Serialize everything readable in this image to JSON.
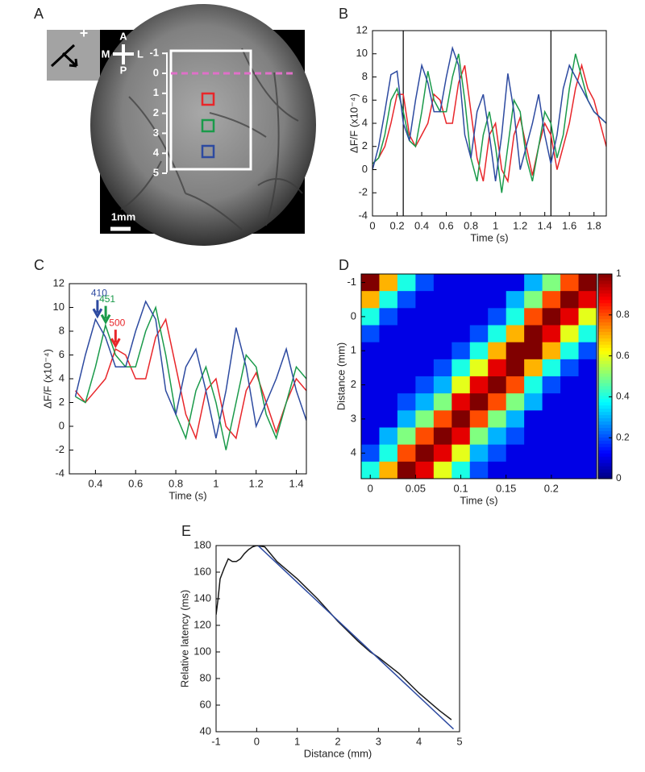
{
  "panel_a": {
    "label": "A",
    "compass": {
      "anterior": "A",
      "medial": "M",
      "lateral": "L",
      "posterior": "P"
    },
    "scale_ticks": [
      -1,
      0,
      1,
      2,
      3,
      4,
      5
    ],
    "scale_bar": "1mm",
    "inset_marker": "+"
  },
  "chart_data": [
    {
      "type": "line",
      "label": "B",
      "xlabel": "Time (s)",
      "ylabel": "ΔF/F (x10⁻⁴)",
      "x": [
        0,
        0.05,
        0.1,
        0.15,
        0.2,
        0.25,
        0.3,
        0.35,
        0.4,
        0.45,
        0.5,
        0.55,
        0.6,
        0.65,
        0.7,
        0.75,
        0.8,
        0.85,
        0.9,
        0.95,
        1.0,
        1.05,
        1.1,
        1.15,
        1.2,
        1.25,
        1.3,
        1.35,
        1.4,
        1.45,
        1.5,
        1.55,
        1.6,
        1.65,
        1.7,
        1.75,
        1.8,
        1.85,
        1.9
      ],
      "series": [
        {
          "color": "#e8262a",
          "values": [
            0.5,
            1,
            2,
            4,
            6.5,
            6.5,
            3,
            2,
            3,
            4,
            6.5,
            6,
            4,
            4,
            7.5,
            9,
            5,
            1,
            -1,
            3,
            4,
            0,
            -1,
            3,
            4.5,
            2,
            -0.5,
            2,
            4,
            3,
            0,
            2,
            4,
            7,
            9,
            7,
            6,
            4,
            2
          ]
        },
        {
          "color": "#1a9a4a",
          "values": [
            0.5,
            1,
            3,
            6,
            7,
            5,
            2.5,
            2,
            5,
            8.5,
            6,
            5,
            5,
            8,
            10,
            6,
            1,
            -1,
            3,
            5,
            2,
            -2,
            2,
            6,
            5,
            1,
            -1,
            2,
            5,
            4,
            1,
            3,
            7,
            10,
            8,
            6,
            5,
            4.5,
            4
          ]
        },
        {
          "color": "#2d4aa0",
          "values": [
            0,
            2,
            5,
            8.2,
            8.5,
            4,
            2.5,
            6,
            9,
            7.5,
            5,
            5,
            8,
            10.5,
            9,
            3,
            1,
            5,
            6.5,
            3,
            -1,
            3,
            8.3,
            5,
            0,
            2,
            4,
            6.5,
            3,
            0.5,
            3,
            7,
            9,
            8,
            7,
            6,
            5,
            4.5,
            4
          ]
        }
      ],
      "vlines": [
        0.25,
        1.45
      ],
      "xlim": [
        0,
        1.9
      ],
      "ylim": [
        -4,
        12
      ],
      "xticks": [
        0,
        0.2,
        0.4,
        0.6,
        0.8,
        1,
        1.2,
        1.4,
        1.6,
        1.8
      ],
      "yticks": [
        -4,
        -2,
        0,
        2,
        4,
        6,
        8,
        10,
        12
      ]
    },
    {
      "type": "line",
      "label": "C",
      "xlabel": "Time (s)",
      "ylabel": "ΔF/F (x10⁻⁴)",
      "x": [
        0.3,
        0.35,
        0.4,
        0.45,
        0.5,
        0.55,
        0.6,
        0.65,
        0.7,
        0.75,
        0.8,
        0.85,
        0.9,
        0.95,
        1.0,
        1.05,
        1.1,
        1.15,
        1.2,
        1.25,
        1.3,
        1.35,
        1.4,
        1.45
      ],
      "series": [
        {
          "color": "#e8262a",
          "values": [
            3,
            2,
            3,
            4,
            6.5,
            6,
            4,
            4,
            7.5,
            9,
            5,
            1,
            -1,
            3,
            4,
            0,
            -1,
            3,
            4.5,
            2,
            -0.5,
            2,
            4,
            3
          ]
        },
        {
          "color": "#1a9a4a",
          "values": [
            2.5,
            2,
            5,
            8.5,
            6,
            5,
            5,
            8,
            10,
            6,
            1,
            -1,
            3,
            5,
            2,
            -2,
            2,
            6,
            5,
            1,
            -1,
            2,
            5,
            4
          ]
        },
        {
          "color": "#2d4aa0",
          "values": [
            2.5,
            6,
            9,
            7.5,
            5,
            5,
            8,
            10.5,
            9,
            3,
            1,
            5,
            6.5,
            3,
            -1,
            3,
            8.3,
            5,
            0,
            2,
            4,
            6.5,
            3,
            0.5
          ]
        }
      ],
      "annotations": [
        {
          "text": "410",
          "x": 0.41,
          "y": 9,
          "color": "#2d4aa0"
        },
        {
          "text": "451",
          "x": 0.451,
          "y": 8.5,
          "color": "#1a9a4a"
        },
        {
          "text": "500",
          "x": 0.5,
          "y": 6.5,
          "color": "#e8262a"
        }
      ],
      "xlim": [
        0.27,
        1.45
      ],
      "ylim": [
        -4,
        12
      ],
      "xticks": [
        0.4,
        0.6,
        0.8,
        1,
        1.2,
        1.4
      ],
      "yticks": [
        -4,
        -2,
        0,
        2,
        4,
        6,
        8,
        10,
        12
      ]
    },
    {
      "type": "heatmap",
      "label": "D",
      "xlabel": "Time (s)",
      "ylabel": "Distance (mm)",
      "x": [
        0,
        0.02,
        0.04,
        0.06,
        0.08,
        0.1,
        0.12,
        0.14,
        0.16,
        0.18,
        0.2,
        0.22,
        0.24
      ],
      "y": [
        -1,
        -0.5,
        0,
        0.5,
        1,
        1.5,
        2,
        2.5,
        3,
        3.5,
        4,
        4.5
      ],
      "z": [
        [
          1.0,
          0.7,
          0.4,
          0.2,
          0.1,
          0.1,
          0.1,
          0.1,
          0.1,
          0.3,
          0.5,
          0.8,
          1.0
        ],
        [
          0.7,
          0.4,
          0.2,
          0.1,
          0.1,
          0.1,
          0.1,
          0.1,
          0.3,
          0.5,
          0.8,
          1.0,
          0.9
        ],
        [
          0.4,
          0.2,
          0.1,
          0.1,
          0.1,
          0.1,
          0.1,
          0.2,
          0.4,
          0.8,
          1.0,
          0.9,
          0.6
        ],
        [
          0.2,
          0.1,
          0.1,
          0.1,
          0.1,
          0.1,
          0.2,
          0.4,
          0.7,
          1.0,
          0.9,
          0.6,
          0.4
        ],
        [
          0.1,
          0.1,
          0.1,
          0.1,
          0.1,
          0.2,
          0.4,
          0.7,
          1.0,
          1.0,
          0.7,
          0.4,
          0.2
        ],
        [
          0.1,
          0.1,
          0.1,
          0.1,
          0.2,
          0.4,
          0.6,
          0.9,
          1.0,
          0.7,
          0.4,
          0.2,
          0.1
        ],
        [
          0.1,
          0.1,
          0.1,
          0.2,
          0.3,
          0.6,
          0.9,
          1.0,
          0.8,
          0.4,
          0.2,
          0.1,
          0.1
        ],
        [
          0.1,
          0.1,
          0.2,
          0.3,
          0.5,
          0.9,
          1.0,
          0.8,
          0.5,
          0.3,
          0.1,
          0.1,
          0.1
        ],
        [
          0.1,
          0.1,
          0.3,
          0.5,
          0.8,
          1.0,
          0.8,
          0.5,
          0.3,
          0.1,
          0.1,
          0.1,
          0.1
        ],
        [
          0.1,
          0.3,
          0.5,
          0.8,
          1.0,
          0.9,
          0.5,
          0.3,
          0.2,
          0.1,
          0.1,
          0.1,
          0.1
        ],
        [
          0.2,
          0.4,
          0.8,
          1.0,
          0.9,
          0.6,
          0.3,
          0.2,
          0.1,
          0.1,
          0.1,
          0.1,
          0.1
        ],
        [
          0.4,
          0.7,
          1.0,
          0.9,
          0.6,
          0.4,
          0.2,
          0.1,
          0.1,
          0.1,
          0.1,
          0.1,
          0.1
        ]
      ],
      "colormap": "jet",
      "clim": [
        0,
        1
      ],
      "cticks": [
        0,
        0.2,
        0.4,
        0.6,
        0.8,
        1
      ],
      "y_inverted": true,
      "xlim": [
        -0.01,
        0.25
      ],
      "ylim": [
        -1.25,
        4.75
      ],
      "xticks": [
        0,
        0.05,
        0.1,
        0.15,
        0.2
      ],
      "yticks": [
        -1,
        0,
        1,
        2,
        3,
        4
      ]
    },
    {
      "type": "line",
      "label": "E",
      "xlabel": "Distance (mm)",
      "ylabel": "Relative latency (ms)",
      "series": [
        {
          "color": "#1a1a1a",
          "x": [
            -1,
            -0.95,
            -0.9,
            -0.8,
            -0.7,
            -0.6,
            -0.5,
            -0.4,
            -0.3,
            -0.2,
            -0.1,
            0,
            0.2,
            0.5,
            1,
            1.5,
            2,
            2.5,
            2.8,
            3,
            3.5,
            4,
            4.5,
            4.8
          ],
          "values": [
            128,
            140,
            155,
            163,
            170,
            168,
            168,
            170,
            174,
            177,
            179,
            180,
            179,
            168,
            155,
            140,
            123,
            108,
            100,
            96,
            84,
            69,
            56,
            49
          ]
        },
        {
          "color": "#2d4aa0",
          "x": [
            0,
            4.85
          ],
          "values": [
            181,
            42
          ]
        }
      ],
      "xlim": [
        -1,
        5
      ],
      "ylim": [
        40,
        180
      ],
      "xticks": [
        -1,
        0,
        1,
        2,
        3,
        4,
        5
      ],
      "yticks": [
        40,
        60,
        80,
        100,
        120,
        140,
        160,
        180
      ]
    }
  ]
}
